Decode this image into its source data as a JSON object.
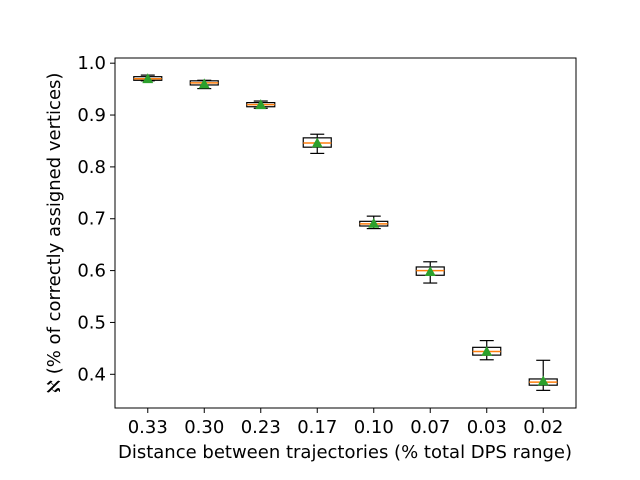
{
  "chart_data": {
    "type": "box",
    "xlabel": "Distance between trajectories (% total DPS range)",
    "ylabel": "ℵ (% of correctly assigned vertices)",
    "categories": [
      "0.33",
      "0.30",
      "0.23",
      "0.17",
      "0.10",
      "0.07",
      "0.03",
      "0.02"
    ],
    "ylim": [
      0.335,
      1.01
    ],
    "yticks": [
      0.4,
      0.5,
      0.6,
      0.7,
      0.8,
      0.9,
      1.0
    ],
    "ytick_labels": [
      "0.4",
      "0.5",
      "0.6",
      "0.7",
      "0.8",
      "0.9",
      "1.0"
    ],
    "grid": false,
    "boxes": [
      {
        "category": "0.33",
        "whisker_low": 0.966,
        "q1": 0.967,
        "median": 0.97,
        "q3": 0.974,
        "whisker_high": 0.977,
        "mean": 0.97
      },
      {
        "category": "0.30",
        "whisker_low": 0.951,
        "q1": 0.958,
        "median": 0.962,
        "q3": 0.966,
        "whisker_high": 0.967,
        "mean": 0.96
      },
      {
        "category": "0.23",
        "whisker_low": 0.913,
        "q1": 0.916,
        "median": 0.92,
        "q3": 0.924,
        "whisker_high": 0.927,
        "mean": 0.92
      },
      {
        "category": "0.17",
        "whisker_low": 0.826,
        "q1": 0.838,
        "median": 0.846,
        "q3": 0.856,
        "whisker_high": 0.863,
        "mean": 0.846
      },
      {
        "category": "0.10",
        "whisker_low": 0.681,
        "q1": 0.686,
        "median": 0.69,
        "q3": 0.695,
        "whisker_high": 0.705,
        "mean": 0.691
      },
      {
        "category": "0.07",
        "whisker_low": 0.576,
        "q1": 0.591,
        "median": 0.6,
        "q3": 0.607,
        "whisker_high": 0.617,
        "mean": 0.598
      },
      {
        "category": "0.03",
        "whisker_low": 0.428,
        "q1": 0.437,
        "median": 0.444,
        "q3": 0.452,
        "whisker_high": 0.465,
        "mean": 0.444
      },
      {
        "category": "0.02",
        "whisker_low": 0.369,
        "q1": 0.379,
        "median": 0.385,
        "q3": 0.391,
        "whisker_high": 0.427,
        "mean": 0.387
      }
    ],
    "colors": {
      "box": "#000000",
      "median": "#ff7f0e",
      "mean_marker": "#2ca02c"
    }
  }
}
